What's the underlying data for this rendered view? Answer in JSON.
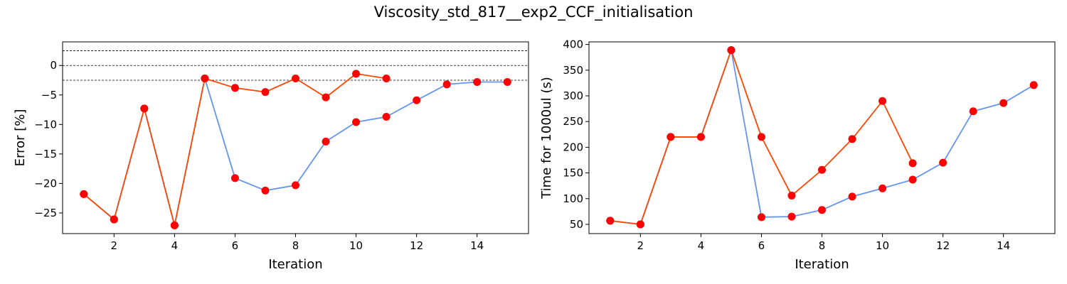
{
  "figure": {
    "title": "Viscosity_std_817__exp2_CCF_initialisation"
  },
  "chart_data": [
    {
      "type": "line",
      "title": "",
      "xlabel": "Iteration",
      "ylabel": "Error [%]",
      "xlim": [
        0.3,
        15.7
      ],
      "ylim": [
        -28.5,
        4.0
      ],
      "xticks": [
        2,
        4,
        6,
        8,
        10,
        12,
        14
      ],
      "yticks": [
        -25,
        -20,
        -15,
        -10,
        -5,
        0
      ],
      "reference_lines": [
        2.5,
        0,
        -2.5
      ],
      "grid": false,
      "legend": "none",
      "marker_color": "#ff0000",
      "series": [
        {
          "color": "#6495ed",
          "x": [
            1,
            2,
            3,
            4,
            5,
            6,
            7,
            8,
            9,
            10,
            11,
            12,
            13,
            14,
            15
          ],
          "y": [
            -21.8,
            -26.1,
            -7.3,
            -27.1,
            -2.2,
            -19.1,
            -21.2,
            -20.3,
            -12.9,
            -9.6,
            -8.7,
            -5.9,
            -3.2,
            -2.8,
            -2.8
          ]
        },
        {
          "color": "#ff4500",
          "x": [
            1,
            2,
            3,
            4,
            5,
            6,
            7,
            8,
            9,
            10,
            11
          ],
          "y": [
            -21.8,
            -26.1,
            -7.3,
            -27.1,
            -2.2,
            -3.8,
            -4.5,
            -2.2,
            -5.4,
            -1.4,
            -2.2
          ]
        }
      ]
    },
    {
      "type": "line",
      "title": "",
      "xlabel": "Iteration",
      "ylabel": "Time for 1000ul (s)",
      "xlim": [
        0.3,
        15.7
      ],
      "ylim": [
        32,
        405
      ],
      "xticks": [
        2,
        4,
        6,
        8,
        10,
        12,
        14
      ],
      "yticks": [
        50,
        100,
        150,
        200,
        250,
        300,
        350,
        400
      ],
      "reference_lines": [],
      "grid": false,
      "legend": "none",
      "marker_color": "#ff0000",
      "series": [
        {
          "color": "#6495ed",
          "x": [
            1,
            2,
            3,
            4,
            5,
            6,
            7,
            8,
            9,
            10,
            11,
            12,
            13,
            14,
            15
          ],
          "y": [
            57,
            50,
            220,
            220,
            389,
            64,
            65,
            78,
            104,
            120,
            137,
            170,
            270,
            286,
            321
          ]
        },
        {
          "color": "#ff4500",
          "x": [
            1,
            2,
            3,
            4,
            5,
            6,
            7,
            8,
            9,
            10,
            11
          ],
          "y": [
            57,
            50,
            220,
            220,
            389,
            220,
            106,
            156,
            216,
            290,
            169
          ]
        }
      ]
    }
  ]
}
